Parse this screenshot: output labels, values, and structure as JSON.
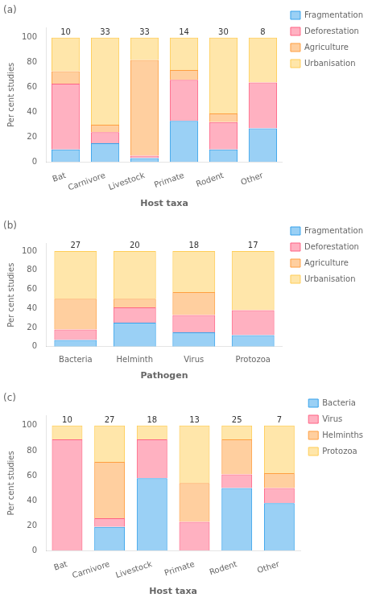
{
  "chart_data": [
    {
      "type": "bar",
      "title": "(a)",
      "stacked": true,
      "grid": false,
      "legend": "right",
      "xlabel": "Host taxa",
      "ylabel": "Per cent studies",
      "categories": [
        "Bat",
        "Carnivore",
        "Livestock",
        "Primate",
        "Rodent",
        "Other"
      ],
      "series": [
        {
          "name": "Fragmentation",
          "values": [
            10,
            15,
            3,
            33,
            10,
            27
          ]
        },
        {
          "name": "Deforestation",
          "values": [
            53,
            9,
            2,
            33,
            22,
            37
          ]
        },
        {
          "name": "Agriculture",
          "values": [
            10,
            6,
            77,
            8,
            7,
            0
          ]
        },
        {
          "name": "Urbanisation",
          "values": [
            27,
            70,
            18,
            26,
            61,
            36
          ]
        }
      ],
      "ylim": [
        0,
        108
      ],
      "yticks": [
        0,
        20,
        40,
        60,
        80,
        100
      ],
      "annotations": [
        {
          "text": "10",
          "x": "Bat",
          "y": 101
        },
        {
          "text": "33",
          "x": "Carnivore",
          "y": 101
        },
        {
          "text": "33",
          "x": "Livestock",
          "y": 101
        },
        {
          "text": "14",
          "x": "Primate",
          "y": 101
        },
        {
          "text": "30",
          "x": "Rodent",
          "y": 101
        },
        {
          "text": "8",
          "x": "Other",
          "y": 101
        }
      ]
    },
    {
      "type": "bar",
      "title": "(b)",
      "stacked": true,
      "grid": false,
      "legend": "right",
      "xlabel": "Pathogen",
      "ylabel": "Per cent studies",
      "categories": [
        "Bacteria",
        "Helminth",
        "Virus",
        "Protozoa"
      ],
      "series": [
        {
          "name": "Fragmentation",
          "values": [
            7,
            25,
            15,
            12
          ]
        },
        {
          "name": "Deforestation",
          "values": [
            11,
            16,
            18,
            26
          ]
        },
        {
          "name": "Agriculture",
          "values": [
            32,
            9,
            24,
            0
          ]
        },
        {
          "name": "Urbanisation",
          "values": [
            50,
            50,
            43,
            62
          ]
        }
      ],
      "ylim": [
        0,
        108
      ],
      "yticks": [
        0,
        20,
        40,
        60,
        80,
        100
      ],
      "annotations": [
        {
          "text": "27",
          "x": "Bacteria",
          "y": 101
        },
        {
          "text": "20",
          "x": "Helminth",
          "y": 101
        },
        {
          "text": "18",
          "x": "Virus",
          "y": 101
        },
        {
          "text": "17",
          "x": "Protozoa",
          "y": 101
        }
      ]
    },
    {
      "type": "bar",
      "title": "(c)",
      "stacked": true,
      "grid": false,
      "legend": "right",
      "xlabel": "Host taxa",
      "ylabel": "Per cent studies",
      "categories": [
        "Bat",
        "Carnivore",
        "Livestock",
        "Primate",
        "Rodent",
        "Other"
      ],
      "series": [
        {
          "name": "Bacteria",
          "values": [
            0,
            19,
            58,
            0,
            50,
            38
          ]
        },
        {
          "name": "Virus",
          "values": [
            89,
            7,
            31,
            23,
            11,
            12
          ]
        },
        {
          "name": "Helminths",
          "values": [
            0,
            45,
            0,
            31,
            28,
            12
          ]
        },
        {
          "name": "Protozoa",
          "values": [
            11,
            29,
            11,
            46,
            11,
            38
          ]
        }
      ],
      "ylim": [
        0,
        108
      ],
      "yticks": [
        0,
        20,
        40,
        60,
        80,
        100
      ],
      "annotations": [
        {
          "text": "10",
          "x": "Bat",
          "y": 101
        },
        {
          "text": "27",
          "x": "Carnivore",
          "y": 101
        },
        {
          "text": "18",
          "x": "Livestock",
          "y": 101
        },
        {
          "text": "13",
          "x": "Primate",
          "y": 101
        },
        {
          "text": "25",
          "x": "Rodent",
          "y": 101
        },
        {
          "text": "7",
          "x": "Other",
          "y": 101
        }
      ]
    }
  ]
}
